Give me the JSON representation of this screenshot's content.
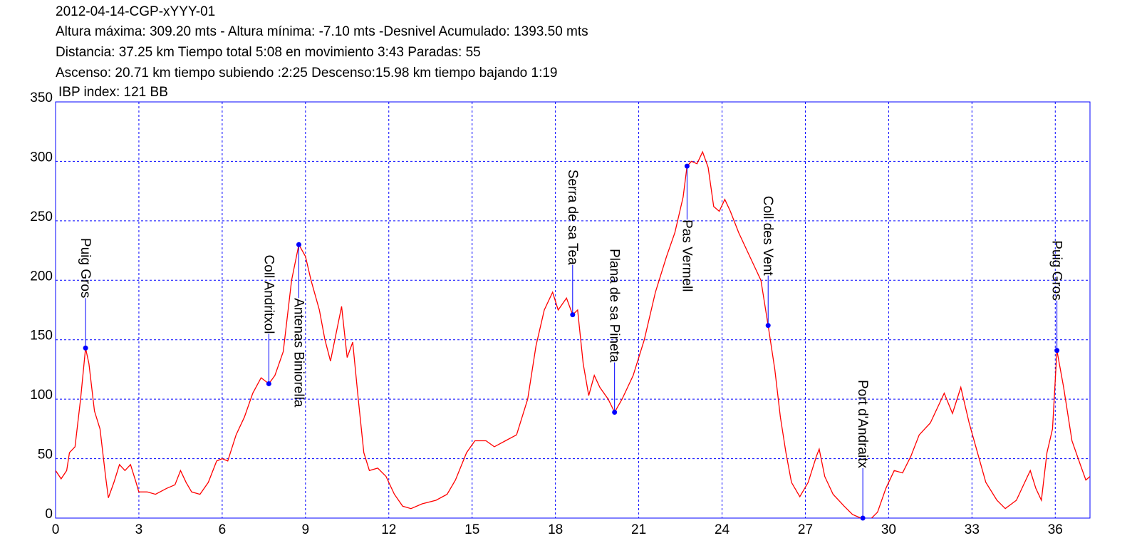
{
  "chart_data": {
    "type": "line",
    "title_lines": [
      "2012-04-14-CGP-xYYY-01",
      "Altura máxima: 309.20 mts - Altura mínima: -7.10 mts -Desnivel Acumulado: 1393.50 mts",
      "Distancia: 37.25 km  Tiempo total 5:08  en movimiento 3:43 Paradas: 55",
      "Ascenso: 20.71 km  tiempo subiendo :2:25  Descenso:15.98 km tiempo bajando 1:19",
      "IBP index: 121 BB"
    ],
    "xlim": [
      0,
      37.25
    ],
    "ylim": [
      0,
      350
    ],
    "xticks": [
      0,
      3,
      6,
      9,
      12,
      15,
      18,
      21,
      24,
      27,
      30,
      33,
      36
    ],
    "yticks": [
      0,
      50,
      100,
      150,
      200,
      250,
      300,
      350
    ],
    "grid": true,
    "series": [
      {
        "color": "#ff0000",
        "x": [
          0,
          0.2,
          0.4,
          0.5,
          0.7,
          0.9,
          1.08,
          1.2,
          1.4,
          1.6,
          1.8,
          1.9,
          2.1,
          2.3,
          2.5,
          2.7,
          2.9,
          3.0,
          3.3,
          3.6,
          4.0,
          4.3,
          4.5,
          4.7,
          4.9,
          5.2,
          5.5,
          5.8,
          6.0,
          6.2,
          6.5,
          6.8,
          7.1,
          7.4,
          7.68,
          7.9,
          8.2,
          8.5,
          8.76,
          9.0,
          9.2,
          9.5,
          9.7,
          9.9,
          10.1,
          10.3,
          10.5,
          10.7,
          10.9,
          11.1,
          11.3,
          11.6,
          11.9,
          12.2,
          12.5,
          12.8,
          13.2,
          13.7,
          14.1,
          14.4,
          14.8,
          15.1,
          15.5,
          15.8,
          16.2,
          16.6,
          17.0,
          17.3,
          17.6,
          17.9,
          18.1,
          18.4,
          18.62,
          18.8,
          19.0,
          19.2,
          19.4,
          19.6,
          19.9,
          20.13,
          20.4,
          20.8,
          21.2,
          21.6,
          22.0,
          22.3,
          22.6,
          22.74,
          22.9,
          23.1,
          23.3,
          23.5,
          23.7,
          23.9,
          24.1,
          24.3,
          24.6,
          24.9,
          25.2,
          25.4,
          25.66,
          25.9,
          26.1,
          26.3,
          26.5,
          26.8,
          27.1,
          27.4,
          27.5,
          27.7,
          28.0,
          28.4,
          28.7,
          29.0,
          29.07,
          29.3,
          29.6,
          29.9,
          30.2,
          30.5,
          30.8,
          31.1,
          31.5,
          31.8,
          32.0,
          32.3,
          32.6,
          32.9,
          33.2,
          33.5,
          33.9,
          34.2,
          34.6,
          34.9,
          35.1,
          35.3,
          35.5,
          35.7,
          35.9,
          36.06,
          36.3,
          36.6,
          36.9,
          37.1,
          37.25
        ],
        "values": [
          40,
          33,
          40,
          55,
          60,
          100,
          143,
          130,
          90,
          75,
          35,
          17,
          30,
          45,
          40,
          45,
          30,
          22,
          22,
          20,
          25,
          28,
          40,
          30,
          22,
          20,
          30,
          48,
          50,
          48,
          70,
          85,
          105,
          118,
          113,
          120,
          140,
          200,
          230,
          220,
          200,
          175,
          150,
          132,
          155,
          178,
          135,
          148,
          100,
          55,
          40,
          42,
          35,
          20,
          10,
          8,
          12,
          15,
          20,
          32,
          55,
          65,
          65,
          60,
          65,
          70,
          100,
          145,
          175,
          190,
          175,
          185,
          171,
          175,
          130,
          103,
          120,
          110,
          100,
          89,
          100,
          120,
          150,
          190,
          220,
          240,
          270,
          296,
          300,
          298,
          308,
          295,
          262,
          258,
          268,
          258,
          240,
          225,
          210,
          200,
          162,
          125,
          85,
          55,
          30,
          18,
          30,
          52,
          58,
          35,
          20,
          10,
          3,
          0,
          0,
          -2,
          5,
          25,
          40,
          38,
          52,
          70,
          80,
          95,
          105,
          88,
          110,
          80,
          55,
          30,
          15,
          8,
          15,
          30,
          40,
          25,
          15,
          55,
          75,
          141,
          110,
          65,
          45,
          32,
          35
        ]
      }
    ],
    "waypoints": [
      {
        "label": "Puig Gros",
        "x": 1.08,
        "y": 143
      },
      {
        "label": "Coll Andritxol",
        "x": 7.68,
        "y": 113
      },
      {
        "label": "Antenas Biniorella",
        "x": 8.76,
        "y": 230
      },
      {
        "label": "Serra de sa Tea",
        "x": 18.62,
        "y": 171
      },
      {
        "label": "Plana de sa Pineta",
        "x": 20.13,
        "y": 89
      },
      {
        "label": "Pas Vermell",
        "x": 22.74,
        "y": 296
      },
      {
        "label": "Coll des Vent",
        "x": 25.66,
        "y": 162
      },
      {
        "label": "Port d'Andraitx",
        "x": 29.07,
        "y": 0
      },
      {
        "label": "Puig Gros",
        "x": 36.06,
        "y": 141
      }
    ],
    "waypoint_color": "#0000ff"
  }
}
